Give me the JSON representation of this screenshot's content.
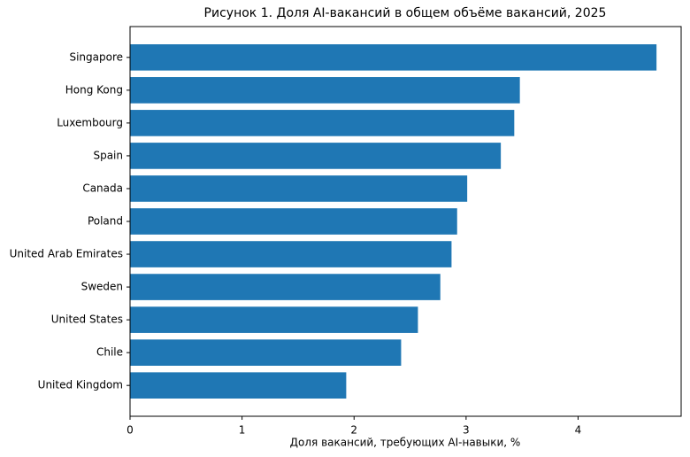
{
  "chart_data": {
    "type": "barh",
    "title": "Рисунок 1. Доля AI-вакансий в общем объёме вакансий, 2025",
    "x_label": "Доля вакансий, требующих AI-навыки, %",
    "categories": [
      "Singapore",
      "Hong Kong",
      "Luxembourg",
      "Spain",
      "Canada",
      "Poland",
      "United Arab Emirates",
      "Sweden",
      "United States",
      "Chile",
      "United Kingdom"
    ],
    "values": [
      4.7,
      3.48,
      3.43,
      3.31,
      3.01,
      2.92,
      2.87,
      2.77,
      2.57,
      2.42,
      1.93
    ],
    "color": "#1f77b4",
    "xlim": [
      0,
      4.92
    ],
    "xticks": [
      0,
      1,
      2,
      3,
      4
    ],
    "grid": false
  }
}
